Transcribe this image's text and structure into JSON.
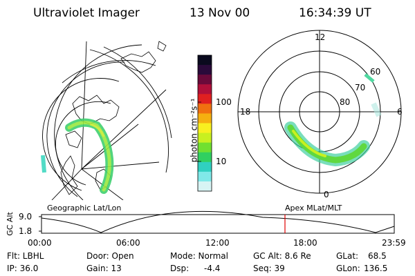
{
  "header": {
    "title": "Ultraviolet Imager",
    "date": "13 Nov 00",
    "time": "16:34:39 UT"
  },
  "panels": {
    "left_label": "Geographic Lat/Lon",
    "right_label": "Apex MLat/MLT"
  },
  "colorbar": {
    "unit_label": "photon cm⁻²s⁻¹",
    "ticks": [
      "100",
      "10"
    ],
    "colors": [
      "#0a0a1e",
      "#2a0a3a",
      "#6a0a3a",
      "#b0103a",
      "#e02020",
      "#f07010",
      "#f5b010",
      "#f8f020",
      "#c8f020",
      "#70e030",
      "#30d060",
      "#30d0c0",
      "#80e8e8",
      "#d8f4f4"
    ]
  },
  "polar": {
    "mlt_labels": {
      "top": "12",
      "left": "18",
      "right": "6",
      "bottom": "0"
    },
    "lat_labels": [
      "60",
      "70",
      "80"
    ]
  },
  "altitude_plot": {
    "ylabel": "GC Alt",
    "y_ticks": [
      "9.0",
      "1.8"
    ],
    "x_ticks": [
      "00:00",
      "06:00",
      "12:00",
      "18:00",
      "23:59"
    ],
    "marker_color": "#e00000"
  },
  "status": {
    "row1": {
      "flt": "Flt: LBHL",
      "door": "Door: Open",
      "mode": "Mode: Normal",
      "gcalt": "GC Alt: 8.6 Re",
      "glat_label": "GLat:",
      "glat_value": "68.5"
    },
    "row2": {
      "ip": "IP: 36.0",
      "gain": "Gain: 13",
      "dsp_label": "Dsp:",
      "dsp_value": "-4.4",
      "seq": "Seq: 39",
      "glon_label": "GLon:",
      "glon_value": "136.5"
    }
  }
}
